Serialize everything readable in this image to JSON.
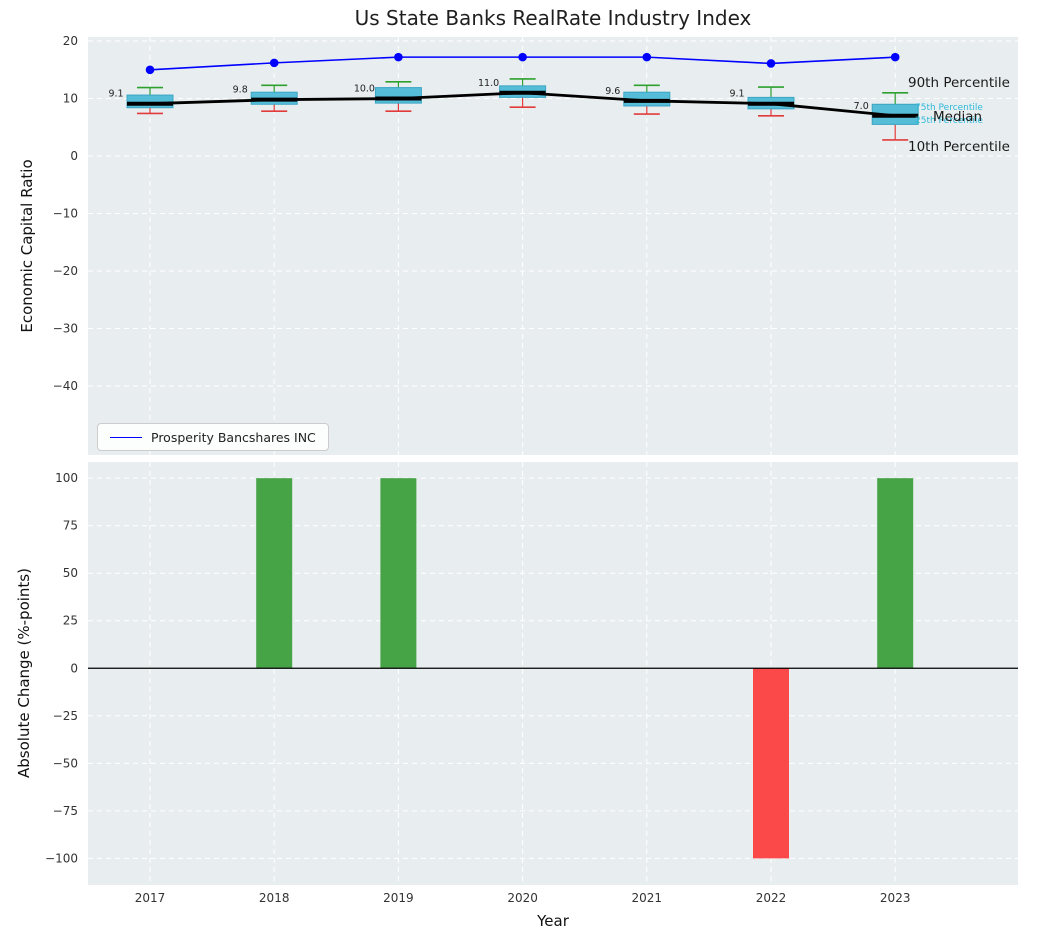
{
  "figure": {
    "title": "Us State Banks RealRate Industry Index",
    "background": "#ffffff",
    "panel_background": "#e8eef0",
    "grid_color": "#ffffff"
  },
  "annotations": {
    "p90": "90th Percentile",
    "p75": "75th Percentile",
    "median": "Median",
    "p25": "25th Percentile",
    "p10": "10th Percentile"
  },
  "chart_data": [
    {
      "type": "boxplot",
      "title": "Us State Banks RealRate Industry Index",
      "ylabel": "Economic Capital Ratio",
      "ylim": [
        -52,
        20.7
      ],
      "yticks": [
        20,
        10,
        0,
        -10,
        -20,
        -30,
        -40
      ],
      "grid": true,
      "categories": [
        "2017",
        "2018",
        "2019",
        "2020",
        "2021",
        "2022",
        "2023"
      ],
      "boxes": [
        {
          "p10": 7.4,
          "q1": 8.4,
          "median": 9.1,
          "q3": 10.6,
          "p90": 11.9
        },
        {
          "p10": 7.8,
          "q1": 9.0,
          "median": 9.8,
          "q3": 11.1,
          "p90": 12.3
        },
        {
          "p10": 7.8,
          "q1": 9.2,
          "median": 10.0,
          "q3": 11.9,
          "p90": 12.9
        },
        {
          "p10": 8.5,
          "q1": 10.2,
          "median": 11.0,
          "q3": 12.2,
          "p90": 13.4
        },
        {
          "p10": 7.3,
          "q1": 8.7,
          "median": 9.6,
          "q3": 11.1,
          "p90": 12.3
        },
        {
          "p10": 7.0,
          "q1": 8.2,
          "median": 9.1,
          "q3": 10.2,
          "p90": 12.0
        },
        {
          "p10": 2.8,
          "q1": 5.5,
          "median": 7.0,
          "q3": 9.0,
          "p90": 11.0
        }
      ],
      "median_labels": [
        "9.1",
        "9.8",
        "10.0",
        "11.0",
        "9.6",
        "9.1",
        "7.0"
      ],
      "median_line_color": "#000000",
      "box_fill": "#56bdd8",
      "box_edge": "#3aa5c4",
      "whisker_top_color": "#2ea02e",
      "whisker_bottom_color": "#e23b3b",
      "line_series": {
        "name": "Prosperity Bancshares INC",
        "values": [
          15.0,
          16.2,
          17.2,
          17.2,
          17.2,
          16.1,
          17.2
        ],
        "color": "#0000ff"
      },
      "legend_position": "lower left"
    },
    {
      "type": "bar",
      "ylabel": "Absolute Change (%-points)",
      "xlabel": "Year",
      "ylim": [
        -114,
        108.5
      ],
      "yticks": [
        100,
        75,
        50,
        25,
        0,
        -25,
        -50,
        -75,
        -100
      ],
      "grid": true,
      "categories": [
        "2017",
        "2018",
        "2019",
        "2020",
        "2021",
        "2022",
        "2023"
      ],
      "values": [
        0,
        100,
        100,
        0,
        0,
        -100,
        100
      ],
      "positive_color": "#46a346",
      "negative_color": "#fb4848",
      "zero_line_color": "#000000"
    }
  ]
}
